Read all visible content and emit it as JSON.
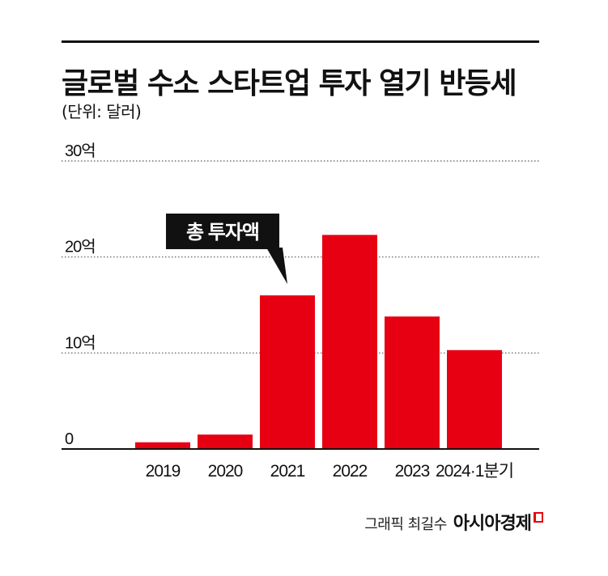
{
  "header": {
    "title": "글로벌 수소 스타트업 투자 열기 반등세",
    "subtitle": "(단위: 달러)"
  },
  "chart_data": {
    "type": "bar",
    "title": "글로벌 수소 스타트업 투자 열기 반등세",
    "unit_note": "(단위: 달러)",
    "categories": [
      "2019",
      "2020",
      "2021",
      "2022",
      "2023",
      "2024·1분기"
    ],
    "series": [
      {
        "name": "총 투자액",
        "values": [
          0.7,
          1.5,
          16.0,
          22.3,
          13.8,
          10.3
        ]
      }
    ],
    "ylim": [
      0,
      30
    ],
    "yticks": [
      0,
      10,
      20,
      30
    ],
    "ytick_labels": [
      "0",
      "10억",
      "20억",
      "30억"
    ],
    "grid": "dotted horizontal",
    "bar_color": "#e60012",
    "annotation": {
      "text": "총 투자액",
      "target_category": "2021"
    }
  },
  "footer": {
    "credit_label": "그래픽 최길수",
    "brand": "아시아경제",
    "brand_color": "#e60012"
  }
}
